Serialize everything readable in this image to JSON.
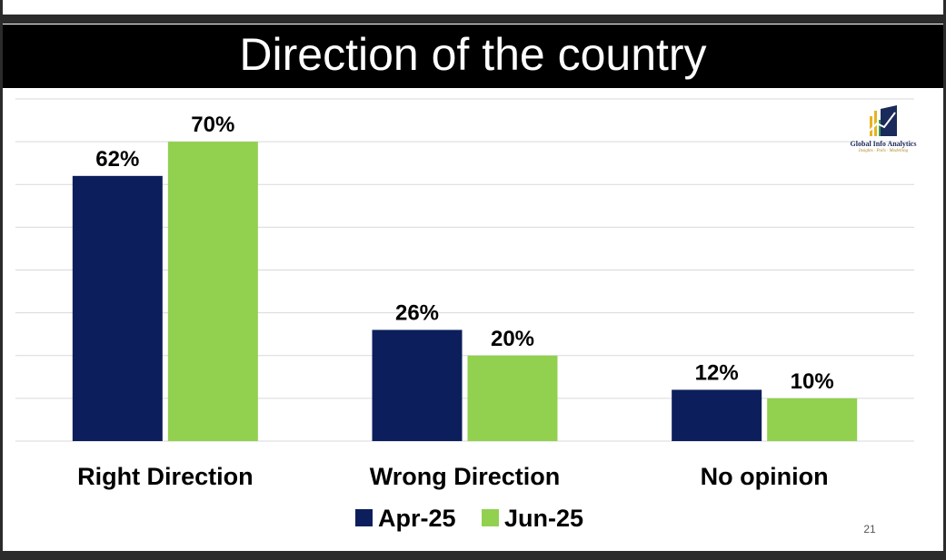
{
  "colors": {
    "series1": "#0c1f5c",
    "series2": "#92d050",
    "title_bg": "#000000",
    "title_fg": "#ffffff",
    "grid": "#d9d9d9"
  },
  "page_number": "21",
  "logo": {
    "name": "Global Info Analytics",
    "tagline": "Insights · Polls · Modelling",
    "icon": "bar-chart-logo-icon"
  },
  "chart_data": {
    "type": "bar",
    "title": "Direction of the country",
    "categories": [
      "Right Direction",
      "Wrong Direction",
      "No opinion"
    ],
    "series": [
      {
        "name": "Apr-25",
        "values": [
          62,
          26,
          12
        ],
        "labels": [
          "62%",
          "26%",
          "12%"
        ]
      },
      {
        "name": "Jun-25",
        "values": [
          70,
          20,
          10
        ],
        "labels": [
          "70%",
          "20%",
          "10%"
        ]
      }
    ],
    "ylim": [
      0,
      80
    ],
    "grid": true,
    "legend": "bottom"
  }
}
